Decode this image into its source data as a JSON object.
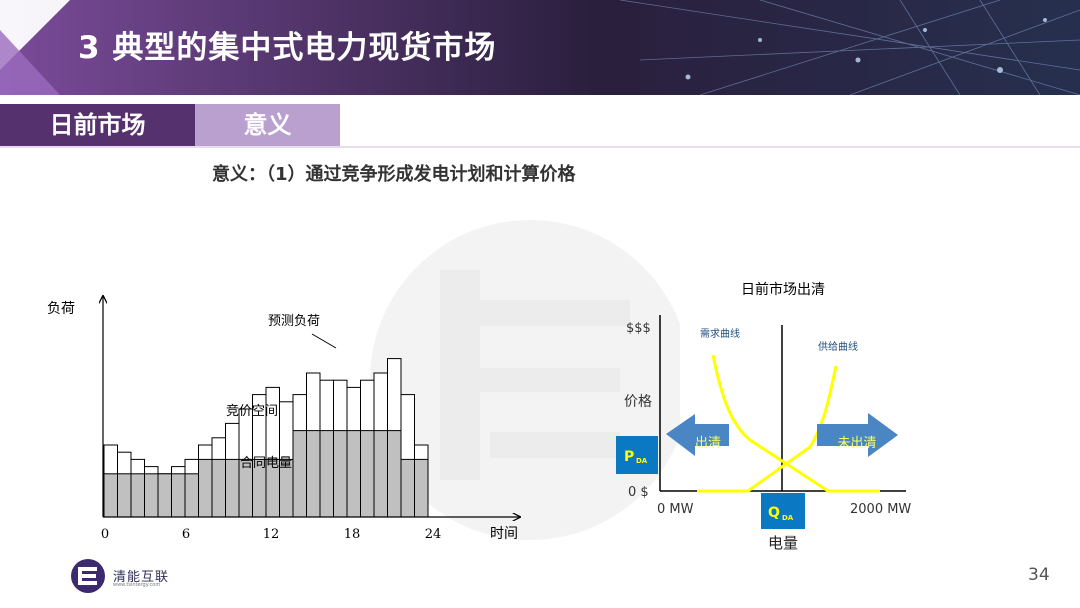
{
  "header": {
    "title": "3 典型的集中式电力现货市场"
  },
  "tabs": {
    "section": "日前市场",
    "topic": "意义"
  },
  "subtitle": "意义：（1）通过竞争形成发电计划和计算价格",
  "left_chart": {
    "y_label": "负荷",
    "x_label": "时间",
    "x_ticks": [
      "0",
      "6",
      "12",
      "18",
      "24"
    ],
    "forecast_label": "预测负荷",
    "bidding_label": "竞价空间",
    "contract_label": "合同电量",
    "forecast_load": [
      100,
      90,
      80,
      70,
      60,
      70,
      80,
      100,
      110,
      130,
      150,
      170,
      180,
      160,
      170,
      200,
      190,
      190,
      180,
      190,
      200,
      220,
      170,
      100
    ],
    "contract_load": [
      60,
      60,
      60,
      60,
      60,
      60,
      60,
      80,
      80,
      80,
      80,
      80,
      80,
      80,
      120,
      120,
      120,
      120,
      120,
      120,
      120,
      120,
      80,
      80
    ]
  },
  "right_chart": {
    "title": "日前市场出清",
    "y_top_label": "$$$",
    "y_price_label": "价格",
    "y_zero_label": "0 $",
    "x_zero_label": "0 MW",
    "x_max_label": "2000 MW",
    "x_label": "电量",
    "demand_label": "需求曲线",
    "supply_label": "供给曲线",
    "arrow_left_label": "出清",
    "arrow_right_label": "未出清",
    "p_main": "P",
    "p_sub": "DA",
    "q_main": "Q",
    "q_sub": "DA"
  },
  "logo": {
    "name": "清能互联",
    "url_text": "www.tsintergy.com"
  },
  "page_number": "34",
  "colors": {
    "purple_dark": "#55316e",
    "purple_light": "#b9a0ce",
    "blue_box": "#0b78c4",
    "arrow_blue": "#4a86c4",
    "curve_yellow": "#ffff00",
    "contract_gray": "#c0c0c0"
  }
}
